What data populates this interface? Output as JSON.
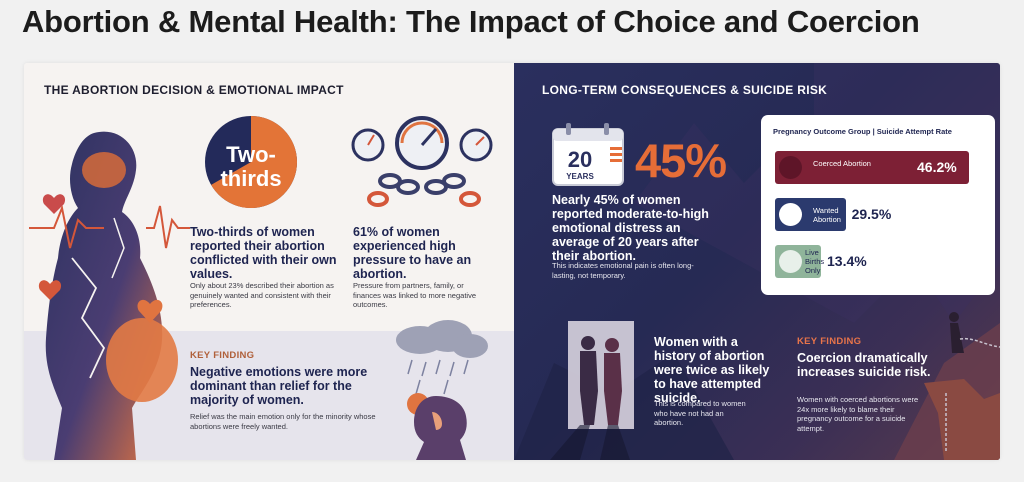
{
  "title": "Abortion & Mental Health: The Impact of Choice and Coercion",
  "left": {
    "section_title": "THE ABORTION DECISION & EMOTIONAL IMPACT",
    "two_thirds_label": "Two-thirds",
    "two_thirds_value": 0.667,
    "two_thirds_bold": "Two-thirds of women reported their abortion conflicted with their own values.",
    "two_thirds_small": "Only about 23% described their abortion as genuinely wanted and consistent with their preferences.",
    "pressure_bold": "61% of women experienced high pressure to have an abortion.",
    "pressure_small": "Pressure from partners, family, or finances was linked to more negative outcomes.",
    "key_label": "KEY FINDING",
    "key_bold": "Negative emotions were more dominant than relief for the majority of women.",
    "key_small": "Relief was the main emotion only for the minority whose abortions were freely wanted."
  },
  "right": {
    "section_title": "LONG-TERM CONSEQUENCES & SUICIDE RISK",
    "calendar_number": "20",
    "calendar_label": "YEARS",
    "big_stat": "45%",
    "stat_bold": "Nearly 45% of women reported moderate-to-high emotional distress an average of 20 years after their abortion.",
    "stat_small": "This indicates emotional pain is often long-lasting, not temporary.",
    "table_header": "Pregnancy Outcome Group | Suicide Attempt Rate",
    "rows": [
      {
        "label": "Coerced Abortion",
        "value": "46.2%",
        "rate": 46.2,
        "color": "#7d2035",
        "value_color": "#ffffff"
      },
      {
        "label": "Wanted Abortion",
        "value": "29.5%",
        "rate": 29.5,
        "color": "#2b3a6e",
        "value_color": "#1e2450"
      },
      {
        "label": "Live Births Only",
        "value": "13.4%",
        "rate": 13.4,
        "color": "#8fb49a",
        "value_color": "#1e2450"
      }
    ],
    "history_bold": "Women with a history of abortion were twice as likely to have attempted suicide.",
    "history_small": "This is compared to women who have not had an abortion.",
    "key_label": "KEY FINDING",
    "key_bold": "Coercion dramatically increases suicide risk.",
    "key_small": "Women with coerced abortions were 24x more likely to blame their pregnancy outcome for a suicide attempt."
  },
  "colors": {
    "accent_orange": "#e66d37",
    "navy": "#1e2450",
    "coerced": "#7d2035",
    "wanted": "#2b3a6e",
    "live": "#8fb49a"
  }
}
